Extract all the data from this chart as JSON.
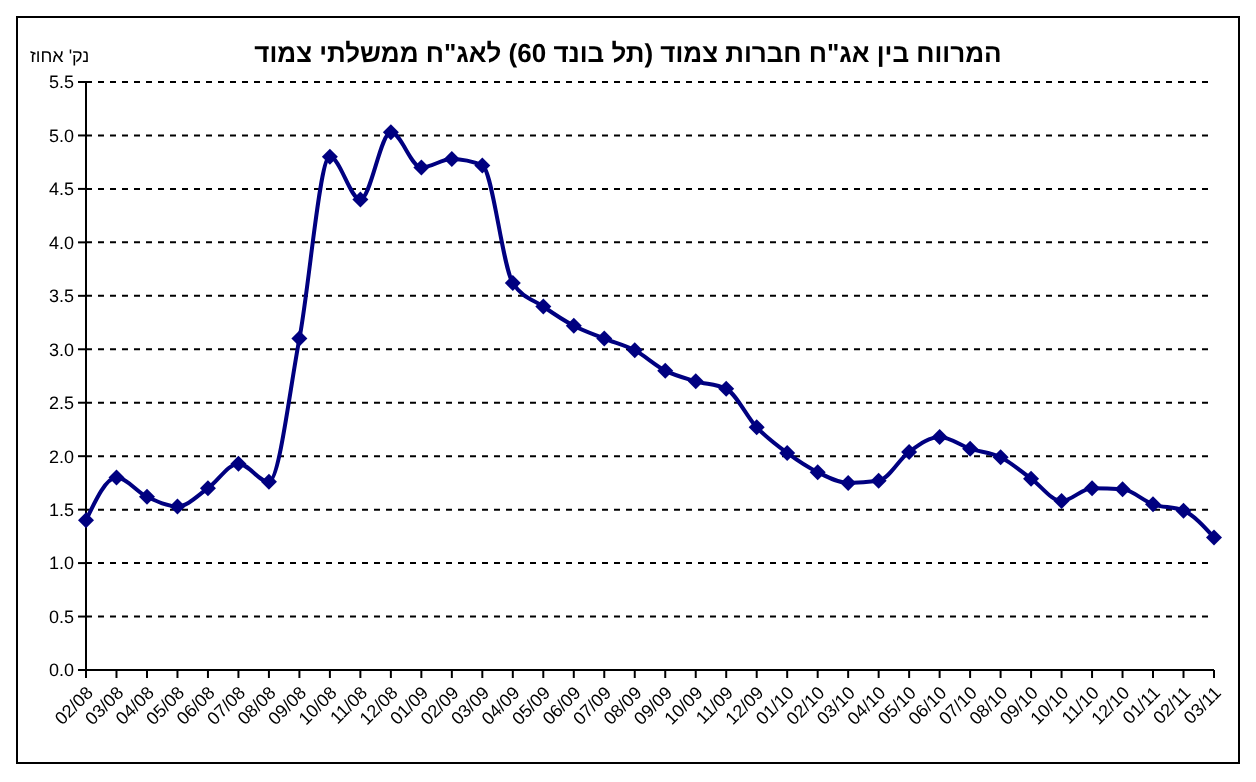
{
  "chart_data": {
    "type": "line",
    "title": "המרווח בין אג\"ח חברות צמוד (תל בונד 60) לאג\"ח ממשלתי צמוד",
    "ylabel": "נק' אחוז",
    "categories": [
      "02/08",
      "03/08",
      "04/08",
      "05/08",
      "06/08",
      "07/08",
      "08/08",
      "09/08",
      "10/08",
      "11/08",
      "12/08",
      "01/09",
      "02/09",
      "03/09",
      "04/09",
      "05/09",
      "06/09",
      "07/09",
      "08/09",
      "09/09",
      "10/09",
      "11/09",
      "12/09",
      "01/10",
      "02/10",
      "03/10",
      "04/10",
      "05/10",
      "06/10",
      "07/10",
      "08/10",
      "09/10",
      "10/10",
      "11/10",
      "12/10",
      "01/11",
      "02/11",
      "03/11"
    ],
    "series": [
      {
        "color": "#000080",
        "values": [
          1.4,
          1.8,
          1.62,
          1.53,
          1.7,
          1.93,
          1.76,
          3.1,
          4.8,
          4.4,
          5.03,
          4.7,
          4.78,
          4.72,
          3.62,
          3.4,
          3.22,
          3.1,
          2.99,
          2.8,
          2.7,
          2.63,
          2.27,
          2.03,
          1.85,
          1.75,
          1.77,
          2.04,
          2.18,
          2.07,
          1.99,
          1.79,
          1.58,
          1.7,
          1.69,
          1.55,
          1.49,
          1.24
        ]
      }
    ],
    "ylim": [
      0,
      5.5
    ],
    "yticks": [
      {
        "value": 0,
        "label": "0.0"
      },
      {
        "value": 0.5,
        "label": "0.5"
      },
      {
        "value": 1,
        "label": "1.0"
      },
      {
        "value": 1.5,
        "label": "1.5"
      },
      {
        "value": 2,
        "label": "2.0"
      },
      {
        "value": 2.5,
        "label": "2.5"
      },
      {
        "value": 3,
        "label": "3.0"
      },
      {
        "value": 3.5,
        "label": "3.5"
      },
      {
        "value": 4,
        "label": "4.0"
      },
      {
        "value": 4.5,
        "label": "4.5"
      },
      {
        "value": 5,
        "label": "5.0"
      },
      {
        "value": 5.5,
        "label": "5.5"
      }
    ],
    "grid": "y",
    "marker": "diamond",
    "line_style": "solid"
  }
}
